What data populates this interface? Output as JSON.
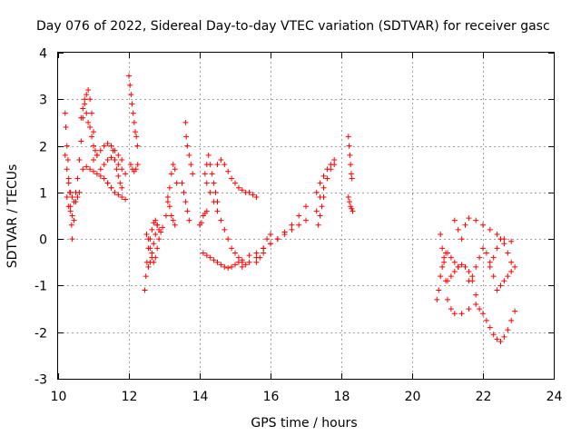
{
  "chart_data": {
    "type": "scatter",
    "title": "Day 076 of 2022, Sidereal Day-to-day VTEC variation (SDTVAR) for receiver gasc",
    "xlabel": "GPS time / hours",
    "ylabel": "SDTVAR / TECUs",
    "xlim": [
      10,
      24
    ],
    "ylim": [
      -3,
      4
    ],
    "xticks": [
      10,
      12,
      14,
      16,
      18,
      20,
      22,
      24
    ],
    "yticks": [
      -3,
      -2,
      -1,
      0,
      1,
      2,
      3,
      4
    ],
    "xtick_labels": [
      "10",
      "12",
      "14",
      "16",
      "18",
      "20",
      "22",
      "24"
    ],
    "ytick_labels": [
      "-3",
      "-2",
      "-1",
      "0",
      "1",
      "2",
      "3",
      "4"
    ],
    "grid": true,
    "marker": "+",
    "color": "#ff0000",
    "series": [
      {
        "name": "s01",
        "x": [
          10.2,
          10.22,
          10.25,
          10.28,
          10.3,
          10.33,
          10.35,
          10.38,
          10.4
        ],
        "y": [
          2.7,
          2.4,
          2.0,
          1.7,
          1.3,
          1.0,
          0.7,
          0.3,
          0.0
        ]
      },
      {
        "name": "s02",
        "x": [
          10.2,
          10.25,
          10.3,
          10.35,
          10.4,
          10.45,
          10.5,
          10.55,
          10.6
        ],
        "y": [
          1.8,
          1.5,
          1.2,
          1.0,
          0.9,
          0.8,
          0.8,
          0.9,
          1.0
        ]
      },
      {
        "name": "s03",
        "x": [
          10.25,
          10.3,
          10.35,
          10.4,
          10.45
        ],
        "y": [
          0.9,
          0.7,
          0.6,
          0.5,
          0.4
        ]
      },
      {
        "name": "s04",
        "x": [
          10.5,
          10.55,
          10.6,
          10.65,
          10.7,
          10.75,
          10.8,
          10.85,
          10.9,
          10.95,
          11.0
        ],
        "y": [
          1.0,
          1.3,
          1.7,
          2.1,
          2.6,
          3.0,
          3.1,
          3.2,
          3.0,
          2.7,
          2.3
        ]
      },
      {
        "name": "s05",
        "x": [
          10.65,
          10.7,
          10.75,
          10.8,
          10.85,
          10.9,
          10.95,
          11.0,
          11.05,
          11.1
        ],
        "y": [
          2.6,
          2.8,
          2.9,
          2.7,
          2.5,
          2.4,
          2.2,
          2.0,
          1.9,
          1.8
        ]
      },
      {
        "name": "s06",
        "x": [
          10.7,
          10.8,
          10.9,
          11.0,
          11.1,
          11.2,
          11.3,
          11.4,
          11.5
        ],
        "y": [
          1.5,
          1.55,
          1.5,
          1.45,
          1.4,
          1.35,
          1.3,
          1.2,
          1.1
        ]
      },
      {
        "name": "s07",
        "x": [
          11.0,
          11.1,
          11.2,
          11.3,
          11.4,
          11.5,
          11.6,
          11.7,
          11.8
        ],
        "y": [
          1.7,
          1.8,
          1.9,
          2.0,
          2.05,
          2.0,
          1.9,
          1.8,
          1.7
        ]
      },
      {
        "name": "s08",
        "x": [
          11.2,
          11.3,
          11.4,
          11.5,
          11.6,
          11.7,
          11.8,
          11.9
        ],
        "y": [
          1.5,
          1.6,
          1.7,
          1.75,
          1.7,
          1.6,
          1.5,
          1.4
        ]
      },
      {
        "name": "s09",
        "x": [
          11.4,
          11.5,
          11.6,
          11.7,
          11.8,
          11.9
        ],
        "y": [
          1.2,
          1.1,
          1.0,
          0.95,
          0.9,
          0.85
        ]
      },
      {
        "name": "s10",
        "x": [
          11.55,
          11.6,
          11.65,
          11.7,
          11.75,
          11.8
        ],
        "y": [
          1.9,
          1.7,
          1.5,
          1.35,
          1.2,
          1.1
        ]
      },
      {
        "name": "s11",
        "x": [
          12.0,
          12.03,
          12.06,
          12.09,
          12.12,
          12.15,
          12.18,
          12.21,
          12.24
        ],
        "y": [
          3.5,
          3.3,
          3.1,
          2.9,
          2.7,
          2.5,
          2.3,
          2.2,
          2.0
        ]
      },
      {
        "name": "s12",
        "x": [
          12.05,
          12.1,
          12.15,
          12.2,
          12.25
        ],
        "y": [
          1.6,
          1.5,
          1.45,
          1.5,
          1.6
        ]
      },
      {
        "name": "s13",
        "x": [
          12.45,
          12.48,
          12.51,
          12.55,
          12.6,
          12.65,
          12.7,
          12.75,
          12.8,
          12.85
        ],
        "y": [
          -1.1,
          -0.8,
          -0.5,
          -0.2,
          0.0,
          0.2,
          0.35,
          0.4,
          0.3,
          0.2
        ]
      },
      {
        "name": "s14",
        "x": [
          12.5,
          12.55,
          12.6,
          12.65,
          12.7,
          12.75,
          12.8,
          12.85,
          12.9,
          12.95
        ],
        "y": [
          0.1,
          0.0,
          -0.2,
          -0.4,
          -0.5,
          -0.4,
          -0.2,
          0.0,
          0.15,
          0.25
        ]
      },
      {
        "name": "s15",
        "x": [
          12.55,
          12.6,
          12.65,
          12.7,
          12.75,
          12.8
        ],
        "y": [
          -0.6,
          -0.5,
          -0.3,
          -0.1,
          0.1,
          0.3
        ]
      },
      {
        "name": "s16",
        "x": [
          13.05,
          13.1,
          13.15,
          13.2,
          13.25,
          13.3,
          13.35
        ],
        "y": [
          0.5,
          0.8,
          1.1,
          1.4,
          1.6,
          1.5,
          1.2
        ]
      },
      {
        "name": "s17",
        "x": [
          13.1,
          13.15,
          13.2,
          13.25,
          13.3
        ],
        "y": [
          0.9,
          0.7,
          0.5,
          0.4,
          0.3
        ]
      },
      {
        "name": "s18",
        "x": [
          13.5,
          13.55,
          13.6,
          13.65,
          13.7
        ],
        "y": [
          1.2,
          1.0,
          0.8,
          0.6,
          0.4
        ]
      },
      {
        "name": "s19",
        "x": [
          13.6,
          13.62,
          13.65,
          13.7,
          13.75,
          13.8
        ],
        "y": [
          2.5,
          2.2,
          2.0,
          1.8,
          1.6,
          1.4
        ]
      },
      {
        "name": "s20",
        "x": [
          14.0,
          14.05,
          14.1,
          14.15,
          14.2
        ],
        "y": [
          0.3,
          0.35,
          0.5,
          0.55,
          0.6
        ]
      },
      {
        "name": "s21",
        "x": [
          14.15,
          14.2,
          14.25,
          14.3,
          14.35,
          14.4,
          14.45,
          14.5
        ],
        "y": [
          1.4,
          1.6,
          1.8,
          1.6,
          1.4,
          1.2,
          1.0,
          0.8
        ]
      },
      {
        "name": "s22",
        "x": [
          14.2,
          14.3,
          14.4,
          14.5,
          14.6,
          14.7,
          14.8,
          14.9,
          15.0,
          15.1,
          15.2,
          15.3
        ],
        "y": [
          1.2,
          1.0,
          0.8,
          0.6,
          0.4,
          0.2,
          0.0,
          -0.2,
          -0.3,
          -0.4,
          -0.5,
          -0.55
        ]
      },
      {
        "name": "s23",
        "x": [
          14.5,
          14.6,
          14.7,
          14.8,
          14.9,
          15.0,
          15.1,
          15.2,
          15.3,
          15.4,
          15.5,
          15.6
        ],
        "y": [
          1.6,
          1.7,
          1.6,
          1.45,
          1.3,
          1.2,
          1.1,
          1.05,
          1.0,
          1.0,
          0.95,
          0.9
        ]
      },
      {
        "name": "s24",
        "x": [
          14.1,
          14.2,
          14.3,
          14.4,
          14.5,
          14.6,
          14.7,
          14.8,
          14.9,
          15.0,
          15.1,
          15.2
        ],
        "y": [
          -0.3,
          -0.35,
          -0.4,
          -0.45,
          -0.5,
          -0.55,
          -0.6,
          -0.62,
          -0.6,
          -0.55,
          -0.5,
          -0.45
        ]
      },
      {
        "name": "s25",
        "x": [
          15.2,
          15.4,
          15.6,
          15.8,
          16.0,
          16.2,
          16.4,
          16.6,
          16.8,
          17.0
        ],
        "y": [
          -0.6,
          -0.5,
          -0.4,
          -0.3,
          -0.1,
          0.0,
          0.15,
          0.3,
          0.5,
          0.7
        ]
      },
      {
        "name": "s26",
        "x": [
          15.4,
          15.6,
          15.8,
          16.0,
          16.2,
          16.4,
          16.6,
          16.8,
          17.0
        ],
        "y": [
          -0.35,
          -0.3,
          -0.2,
          -0.1,
          0.0,
          0.1,
          0.2,
          0.3,
          0.4
        ]
      },
      {
        "name": "s27",
        "x": [
          15.6,
          15.7,
          15.8,
          15.9,
          16.0
        ],
        "y": [
          -0.5,
          -0.4,
          -0.2,
          0.0,
          0.1
        ]
      },
      {
        "name": "s28",
        "x": [
          17.3,
          17.4,
          17.5,
          17.6,
          17.7,
          17.8
        ],
        "y": [
          0.6,
          0.9,
          1.1,
          1.3,
          1.5,
          1.6
        ]
      },
      {
        "name": "s29",
        "x": [
          17.3,
          17.4,
          17.5,
          17.6,
          17.7,
          17.8
        ],
        "y": [
          1.0,
          1.2,
          1.35,
          1.5,
          1.6,
          1.7
        ]
      },
      {
        "name": "s30",
        "x": [
          17.35,
          17.4,
          17.45,
          17.5
        ],
        "y": [
          0.3,
          0.5,
          0.7,
          0.9
        ]
      },
      {
        "name": "s31",
        "x": [
          18.2,
          18.22,
          18.24,
          18.26,
          18.28,
          18.3
        ],
        "y": [
          2.2,
          2.0,
          1.8,
          1.6,
          1.4,
          1.3
        ]
      },
      {
        "name": "s32",
        "x": [
          18.2,
          18.23,
          18.26,
          18.29,
          18.32
        ],
        "y": [
          0.9,
          0.8,
          0.7,
          0.65,
          0.6
        ]
      },
      {
        "name": "s33",
        "x": [
          20.7,
          20.75,
          20.8,
          20.85,
          20.9,
          20.95,
          21.0,
          21.1,
          21.2,
          21.3
        ],
        "y": [
          -1.3,
          -1.1,
          -0.8,
          -0.6,
          -0.4,
          -0.3,
          -0.3,
          -0.4,
          -0.5,
          -0.6
        ]
      },
      {
        "name": "s34",
        "x": [
          20.8,
          20.85,
          20.9,
          20.95,
          21.0,
          21.1,
          21.2,
          21.4,
          21.6
        ],
        "y": [
          0.1,
          -0.2,
          -0.5,
          -0.9,
          -1.3,
          -1.5,
          -1.6,
          -1.6,
          -1.5
        ]
      },
      {
        "name": "s35",
        "x": [
          21.0,
          21.1,
          21.2,
          21.3,
          21.4,
          21.5,
          21.6,
          21.7,
          21.8
        ],
        "y": [
          -0.9,
          -0.8,
          -0.7,
          -0.6,
          -0.55,
          -0.6,
          -0.7,
          -0.9,
          -1.2
        ]
      },
      {
        "name": "s36",
        "x": [
          21.2,
          21.3,
          21.4,
          21.5,
          21.6,
          21.8,
          22.0,
          22.2,
          22.4,
          22.6,
          22.8
        ],
        "y": [
          0.4,
          0.2,
          0.0,
          0.3,
          0.45,
          0.4,
          0.3,
          0.2,
          0.1,
          0.0,
          -0.05
        ]
      },
      {
        "name": "s37",
        "x": [
          21.6,
          21.7,
          21.8,
          21.9,
          22.0,
          22.1,
          22.2,
          22.3,
          22.4,
          22.5,
          22.6,
          22.7,
          22.8,
          22.9
        ],
        "y": [
          -0.9,
          -0.8,
          -0.6,
          -0.4,
          -0.2,
          -0.3,
          -0.5,
          -0.8,
          -1.1,
          -1.0,
          -0.9,
          -0.8,
          -0.7,
          -0.6
        ]
      },
      {
        "name": "s38",
        "x": [
          21.8,
          21.9,
          22.0,
          22.1,
          22.2,
          22.3,
          22.4,
          22.5,
          22.6,
          22.7,
          22.8,
          22.9
        ],
        "y": [
          -1.4,
          -1.5,
          -1.6,
          -1.75,
          -1.9,
          -2.05,
          -2.15,
          -2.2,
          -2.1,
          -1.95,
          -1.75,
          -1.55
        ]
      },
      {
        "name": "s39",
        "x": [
          22.2,
          22.3,
          22.4,
          22.5,
          22.6,
          22.7,
          22.8
        ],
        "y": [
          -0.6,
          -0.4,
          -0.2,
          0.0,
          -0.1,
          -0.3,
          -0.5
        ]
      }
    ]
  }
}
